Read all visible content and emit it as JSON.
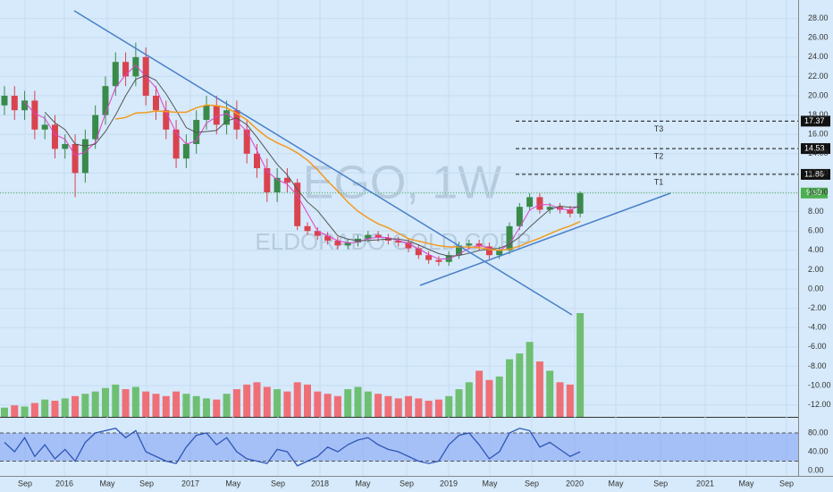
{
  "chart_data": {
    "type": "candlestick",
    "watermark": "EGO, 1W",
    "company": "ELDORADO GOLD CORP",
    "open": [
      19,
      20,
      18.5,
      19.5,
      16.5,
      17,
      14.5,
      15,
      12,
      15.5,
      18,
      21,
      23.5,
      22,
      24,
      20,
      18.5,
      16.5,
      13.5,
      15,
      17.5,
      19,
      17,
      18.5,
      16.5,
      14,
      12.5,
      10,
      11.5,
      11,
      6.5,
      6,
      5.5,
      5,
      4.5,
      4.8,
      5.2,
      5.6,
      5.3,
      5,
      4.8,
      4.2,
      3.5,
      3,
      2.8,
      3.5,
      4.5,
      4.7,
      4.4,
      3.5,
      4,
      6.5,
      8.5,
      9.5,
      8.2,
      8.5,
      8.2,
      7.8
    ],
    "high": [
      21,
      21,
      20.5,
      20.5,
      18,
      18,
      16,
      16,
      16.5,
      19,
      22,
      24.5,
      24.5,
      25.5,
      25,
      21,
      19.5,
      17.5,
      16,
      18.5,
      20,
      20,
      19.5,
      19.5,
      17.5,
      15,
      13.5,
      12.5,
      12.5,
      11.4,
      6.9,
      6.4,
      5.9,
      5.4,
      5.2,
      5.6,
      6,
      6,
      5.7,
      5.4,
      5.2,
      4.6,
      3.9,
      3.4,
      3.9,
      4.9,
      5.1,
      5.1,
      4.8,
      4.4,
      6.9,
      8.9,
      9.9,
      9.9,
      8.9,
      8.9,
      8.6,
      10.1
    ],
    "low": [
      18,
      17.5,
      17.5,
      15.5,
      15.5,
      13.5,
      13.5,
      9.5,
      11,
      14.5,
      17,
      20,
      21,
      21,
      19,
      17.5,
      15.5,
      12.5,
      12.5,
      14,
      16.5,
      16,
      16,
      15.5,
      13,
      11.5,
      9,
      9,
      10,
      6.1,
      5.6,
      5.1,
      4.6,
      4.1,
      4.1,
      4.4,
      4.8,
      4.9,
      4.6,
      4.4,
      3.8,
      3.1,
      2.6,
      2.4,
      2.4,
      3.1,
      4.1,
      4,
      3.1,
      3.1,
      3.6,
      6.1,
      8.1,
      7.8,
      7.8,
      7.8,
      7.4,
      7.4
    ],
    "close": [
      20,
      18.5,
      19.5,
      16.5,
      17,
      14.5,
      15,
      12,
      15.5,
      18,
      21,
      23.5,
      22,
      24,
      20,
      18.5,
      16.5,
      13.5,
      15,
      17.5,
      19,
      17,
      18.5,
      16.5,
      14,
      12.5,
      10,
      11.5,
      11,
      6.5,
      6,
      5.5,
      5,
      4.5,
      4.8,
      5.2,
      5.6,
      5.3,
      5,
      4.8,
      4.2,
      3.5,
      3,
      2.8,
      3.5,
      4.5,
      4.7,
      4.4,
      3.5,
      4,
      6.5,
      8.5,
      9.5,
      8.2,
      8.5,
      8.2,
      7.8,
      9.93
    ],
    "volume": [
      8,
      10,
      9,
      12,
      15,
      14,
      16,
      18,
      20,
      22,
      25,
      28,
      24,
      26,
      22,
      20,
      18,
      22,
      20,
      18,
      16,
      15,
      20,
      24,
      28,
      30,
      26,
      24,
      22,
      30,
      28,
      22,
      20,
      18,
      24,
      26,
      22,
      20,
      18,
      16,
      18,
      16,
      14,
      15,
      18,
      24,
      30,
      40,
      32,
      35,
      50,
      55,
      65,
      48,
      40,
      30,
      28,
      90
    ],
    "stoch": [
      60,
      40,
      70,
      30,
      55,
      25,
      45,
      20,
      60,
      80,
      85,
      90,
      70,
      85,
      40,
      30,
      20,
      15,
      50,
      75,
      80,
      55,
      70,
      40,
      25,
      20,
      15,
      45,
      40,
      10,
      20,
      30,
      50,
      40,
      55,
      65,
      70,
      55,
      45,
      40,
      30,
      20,
      15,
      20,
      55,
      75,
      80,
      55,
      25,
      40,
      80,
      90,
      85,
      50,
      60,
      45,
      30,
      40
    ],
    "up_color": "#3a8a4a",
    "down_color": "#d9434e",
    "vol_up_color": "#6fbf73",
    "vol_down_color": "#ef6f77",
    "last_price": 9.93,
    "targets": [
      {
        "name": "T1",
        "value": 11.86
      },
      {
        "name": "T2",
        "value": 14.53
      },
      {
        "name": "T3",
        "value": 17.37
      }
    ],
    "xlim": [
      -0.44,
      78.58
    ],
    "xticks": [
      {
        "value": 2.04,
        "label": "Sep"
      },
      {
        "value": 5.93,
        "label": "2016"
      },
      {
        "value": 10.18,
        "label": "May"
      },
      {
        "value": 14.07,
        "label": "Sep"
      },
      {
        "value": 18.41,
        "label": "2017"
      },
      {
        "value": 22.65,
        "label": "May"
      },
      {
        "value": 27.08,
        "label": "Sep"
      },
      {
        "value": 31.24,
        "label": "2018"
      },
      {
        "value": 35.49,
        "label": "May"
      },
      {
        "value": 39.82,
        "label": "Sep"
      },
      {
        "value": 43.98,
        "label": "2019"
      },
      {
        "value": 48.05,
        "label": "May"
      },
      {
        "value": 52.21,
        "label": "Sep"
      },
      {
        "value": 56.46,
        "label": "2020"
      },
      {
        "value": 60.53,
        "label": "May"
      },
      {
        "value": 64.96,
        "label": "Sep"
      },
      {
        "value": 69.38,
        "label": "2021"
      },
      {
        "value": 73.45,
        "label": "May"
      },
      {
        "value": 77.43,
        "label": "Sep"
      }
    ],
    "ylim": [
      -13.24,
      29.91
    ],
    "yticks": [
      {
        "value": 28,
        "label": "28.00"
      },
      {
        "value": 26,
        "label": "26.00"
      },
      {
        "value": 24,
        "label": "24.00"
      },
      {
        "value": 22,
        "label": "22.00"
      },
      {
        "value": 20,
        "label": "20.00"
      },
      {
        "value": 18,
        "label": "18.00"
      },
      {
        "value": 16,
        "label": "16.00"
      },
      {
        "value": 14,
        "label": "14.00"
      },
      {
        "value": 12,
        "label": "12.00"
      },
      {
        "value": 10,
        "label": "10.00"
      },
      {
        "value": 8,
        "label": "8.00"
      },
      {
        "value": 6,
        "label": "6.00"
      },
      {
        "value": 4,
        "label": "4.00"
      },
      {
        "value": 2,
        "label": "2.00"
      },
      {
        "value": 0,
        "label": "0.00"
      },
      {
        "value": -2,
        "label": "-2.00"
      },
      {
        "value": -4,
        "label": "-4.00"
      },
      {
        "value": -6,
        "label": "-6.00"
      },
      {
        "value": -8,
        "label": "-8.00"
      },
      {
        "value": -10,
        "label": "-10.00"
      },
      {
        "value": -12,
        "label": "-12.00"
      }
    ],
    "stoch_ylim": [
      -11.4,
      110.5
    ],
    "stoch_yticks": [
      {
        "value": 80,
        "label": "80.00"
      },
      {
        "value": 40,
        "label": "40.00"
      },
      {
        "value": 0,
        "label": "0.00"
      }
    ],
    "stoch_band": [
      20,
      80
    ]
  }
}
